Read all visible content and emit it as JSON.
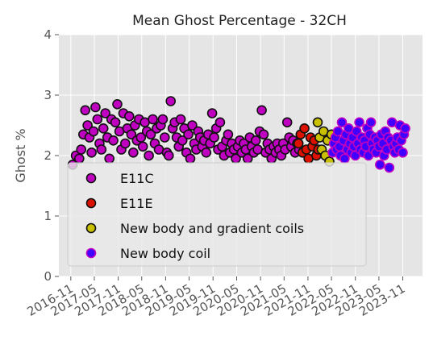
{
  "chart_data": {
    "type": "scatter",
    "title": "Mean Ghost Percentage - 32CH",
    "xlabel": "",
    "ylabel": "Ghost %",
    "xlim": [
      "2016-08-01",
      "2024-04-01"
    ],
    "ylim": [
      0,
      4
    ],
    "yticks": [
      0,
      1,
      2,
      3,
      4
    ],
    "xticks": [
      "2016-11",
      "2017-05",
      "2017-11",
      "2018-05",
      "2018-11",
      "2019-05",
      "2019-11",
      "2020-05",
      "2020-11",
      "2021-05",
      "2021-11",
      "2022-05",
      "2022-11",
      "2023-05",
      "2023-11"
    ],
    "grid": true,
    "legend_position": "lower-left",
    "series": [
      {
        "name": "E11C",
        "face_color": "#c000c0",
        "edge_color": "#111111",
        "points": [
          [
            "2016-11-15",
            1.85
          ],
          [
            "2016-12-10",
            2.0
          ],
          [
            "2017-01-05",
            1.95
          ],
          [
            "2017-01-20",
            2.1
          ],
          [
            "2017-02-05",
            2.35
          ],
          [
            "2017-02-20",
            2.75
          ],
          [
            "2017-03-10",
            2.5
          ],
          [
            "2017-03-25",
            2.3
          ],
          [
            "2017-04-10",
            2.05
          ],
          [
            "2017-04-25",
            2.4
          ],
          [
            "2017-05-10",
            2.8
          ],
          [
            "2017-05-25",
            2.6
          ],
          [
            "2017-06-10",
            2.2
          ],
          [
            "2017-06-25",
            2.1
          ],
          [
            "2017-07-10",
            2.45
          ],
          [
            "2017-07-25",
            2.7
          ],
          [
            "2017-08-10",
            2.3
          ],
          [
            "2017-08-25",
            1.95
          ],
          [
            "2017-09-10",
            2.6
          ],
          [
            "2017-09-25",
            2.25
          ],
          [
            "2017-10-10",
            2.55
          ],
          [
            "2017-10-25",
            2.85
          ],
          [
            "2017-11-10",
            2.4
          ],
          [
            "2017-11-25",
            2.1
          ],
          [
            "2017-12-10",
            2.7
          ],
          [
            "2017-12-25",
            2.2
          ],
          [
            "2018-01-10",
            2.45
          ],
          [
            "2018-01-25",
            2.65
          ],
          [
            "2018-02-10",
            2.35
          ],
          [
            "2018-02-25",
            2.05
          ],
          [
            "2018-03-10",
            2.5
          ],
          [
            "2018-03-25",
            2.25
          ],
          [
            "2018-04-10",
            2.6
          ],
          [
            "2018-04-25",
            2.3
          ],
          [
            "2018-05-10",
            2.15
          ],
          [
            "2018-05-25",
            2.55
          ],
          [
            "2018-06-10",
            2.4
          ],
          [
            "2018-06-25",
            2.0
          ],
          [
            "2018-07-10",
            2.35
          ],
          [
            "2018-07-25",
            2.6
          ],
          [
            "2018-08-10",
            2.2
          ],
          [
            "2018-08-25",
            2.45
          ],
          [
            "2018-09-10",
            2.1
          ],
          [
            "2018-09-25",
            2.5
          ],
          [
            "2018-10-10",
            2.6
          ],
          [
            "2018-10-25",
            2.3
          ],
          [
            "2018-11-10",
            2.05
          ],
          [
            "2018-11-25",
            2.0
          ],
          [
            "2018-12-10",
            2.9
          ],
          [
            "2018-12-25",
            2.45
          ],
          [
            "2019-01-10",
            2.55
          ],
          [
            "2019-01-25",
            2.3
          ],
          [
            "2019-02-10",
            2.15
          ],
          [
            "2019-02-25",
            2.6
          ],
          [
            "2019-03-10",
            2.25
          ],
          [
            "2019-03-25",
            2.45
          ],
          [
            "2019-04-10",
            2.05
          ],
          [
            "2019-04-25",
            2.35
          ],
          [
            "2019-05-10",
            1.95
          ],
          [
            "2019-05-25",
            2.5
          ],
          [
            "2019-06-10",
            2.2
          ],
          [
            "2019-06-25",
            2.1
          ],
          [
            "2019-07-10",
            2.4
          ],
          [
            "2019-07-25",
            2.3
          ],
          [
            "2019-08-10",
            2.15
          ],
          [
            "2019-08-25",
            2.25
          ],
          [
            "2019-09-10",
            2.05
          ],
          [
            "2019-09-25",
            2.35
          ],
          [
            "2019-10-10",
            2.2
          ],
          [
            "2019-10-25",
            2.7
          ],
          [
            "2019-11-10",
            2.3
          ],
          [
            "2019-11-25",
            2.45
          ],
          [
            "2019-12-10",
            2.1
          ],
          [
            "2019-12-25",
            2.55
          ],
          [
            "2020-01-10",
            2.15
          ],
          [
            "2020-01-25",
            2.0
          ],
          [
            "2020-02-10",
            2.25
          ],
          [
            "2020-02-25",
            2.35
          ],
          [
            "2020-03-10",
            2.05
          ],
          [
            "2020-03-25",
            2.2
          ],
          [
            "2020-04-10",
            2.1
          ],
          [
            "2020-04-25",
            1.95
          ],
          [
            "2020-05-10",
            2.15
          ],
          [
            "2020-05-25",
            2.25
          ],
          [
            "2020-06-10",
            2.05
          ],
          [
            "2020-06-25",
            2.2
          ],
          [
            "2020-07-10",
            2.1
          ],
          [
            "2020-07-25",
            1.95
          ],
          [
            "2020-08-10",
            2.3
          ],
          [
            "2020-08-25",
            2.15
          ],
          [
            "2020-09-10",
            2.05
          ],
          [
            "2020-09-25",
            2.25
          ],
          [
            "2020-10-10",
            2.1
          ],
          [
            "2020-10-25",
            2.4
          ],
          [
            "2020-11-10",
            2.75
          ],
          [
            "2020-11-25",
            2.35
          ],
          [
            "2020-12-10",
            2.05
          ],
          [
            "2020-12-25",
            2.2
          ],
          [
            "2021-01-10",
            2.1
          ],
          [
            "2021-01-25",
            1.95
          ],
          [
            "2021-02-10",
            2.15
          ],
          [
            "2021-02-25",
            2.05
          ],
          [
            "2021-03-10",
            2.2
          ],
          [
            "2021-03-25",
            2.1
          ],
          [
            "2021-04-10",
            2.0
          ],
          [
            "2021-04-25",
            2.2
          ],
          [
            "2021-05-10",
            2.1
          ],
          [
            "2021-05-25",
            2.55
          ],
          [
            "2021-06-10",
            2.3
          ],
          [
            "2021-06-25",
            2.15
          ],
          [
            "2021-07-10",
            2.25
          ],
          [
            "2021-07-25",
            2.05
          ],
          [
            "2021-08-10",
            2.2
          ],
          [
            "2021-08-25",
            2.1
          ]
        ]
      },
      {
        "name": "E11E",
        "face_color": "#dd1100",
        "edge_color": "#111111",
        "points": [
          [
            "2021-08-20",
            2.2
          ],
          [
            "2021-09-05",
            2.35
          ],
          [
            "2021-09-20",
            2.05
          ],
          [
            "2021-10-05",
            2.45
          ],
          [
            "2021-10-20",
            2.1
          ],
          [
            "2021-11-05",
            1.95
          ],
          [
            "2021-11-20",
            2.3
          ],
          [
            "2021-12-05",
            2.15
          ],
          [
            "2021-12-20",
            2.25
          ],
          [
            "2022-01-05",
            2.0
          ],
          [
            "2022-01-20",
            2.1
          ]
        ]
      },
      {
        "name": "New body and gradient coils",
        "face_color": "#c8c000",
        "edge_color": "#111111",
        "points": [
          [
            "2022-01-15",
            2.55
          ],
          [
            "2022-01-30",
            2.3
          ],
          [
            "2022-02-15",
            2.1
          ],
          [
            "2022-03-01",
            2.4
          ],
          [
            "2022-03-15",
            2.0
          ],
          [
            "2022-04-01",
            2.25
          ],
          [
            "2022-04-15",
            1.9
          ],
          [
            "2022-05-01",
            2.35
          ]
        ]
      },
      {
        "name": "New body coil",
        "face_color": "#4000ff",
        "edge_color": "#c000c0",
        "points": [
          [
            "2022-05-10",
            2.05
          ],
          [
            "2022-05-20",
            2.2
          ],
          [
            "2022-06-01",
            2.3
          ],
          [
            "2022-06-10",
            2.1
          ],
          [
            "2022-06-20",
            2.4
          ],
          [
            "2022-07-01",
            2.15
          ],
          [
            "2022-07-10",
            2.0
          ],
          [
            "2022-07-20",
            2.55
          ],
          [
            "2022-08-01",
            2.25
          ],
          [
            "2022-08-10",
            1.95
          ],
          [
            "2022-08-20",
            2.35
          ],
          [
            "2022-09-01",
            2.1
          ],
          [
            "2022-09-10",
            2.45
          ],
          [
            "2022-09-20",
            2.2
          ],
          [
            "2022-10-01",
            2.05
          ],
          [
            "2022-10-10",
            2.3
          ],
          [
            "2022-10-20",
            2.15
          ],
          [
            "2022-11-01",
            2.0
          ],
          [
            "2022-11-10",
            2.4
          ],
          [
            "2022-11-20",
            2.2
          ],
          [
            "2022-12-01",
            2.55
          ],
          [
            "2022-12-10",
            2.1
          ],
          [
            "2022-12-20",
            2.3
          ],
          [
            "2023-01-01",
            2.05
          ],
          [
            "2023-01-10",
            2.25
          ],
          [
            "2023-01-20",
            2.15
          ],
          [
            "2023-02-01",
            2.45
          ],
          [
            "2023-02-10",
            2.0
          ],
          [
            "2023-02-20",
            2.35
          ],
          [
            "2023-03-01",
            2.55
          ],
          [
            "2023-03-10",
            2.2
          ],
          [
            "2023-03-20",
            2.1
          ],
          [
            "2023-04-01",
            2.3
          ],
          [
            "2023-04-10",
            2.05
          ],
          [
            "2023-04-20",
            2.25
          ],
          [
            "2023-05-01",
            2.15
          ],
          [
            "2023-05-10",
            1.85
          ],
          [
            "2023-05-20",
            2.35
          ],
          [
            "2023-06-01",
            2.2
          ],
          [
            "2023-06-10",
            2.0
          ],
          [
            "2023-06-20",
            2.4
          ],
          [
            "2023-07-01",
            2.1
          ],
          [
            "2023-07-10",
            2.3
          ],
          [
            "2023-07-20",
            1.8
          ],
          [
            "2023-08-01",
            2.25
          ],
          [
            "2023-08-10",
            2.55
          ],
          [
            "2023-08-20",
            2.15
          ],
          [
            "2023-09-01",
            2.05
          ],
          [
            "2023-09-10",
            2.2
          ],
          [
            "2023-09-20",
            2.3
          ],
          [
            "2023-10-01",
            2.1
          ],
          [
            "2023-10-10",
            2.5
          ],
          [
            "2023-10-20",
            2.25
          ],
          [
            "2023-11-01",
            2.05
          ],
          [
            "2023-11-10",
            2.35
          ],
          [
            "2023-11-20",
            2.45
          ]
        ]
      }
    ]
  }
}
